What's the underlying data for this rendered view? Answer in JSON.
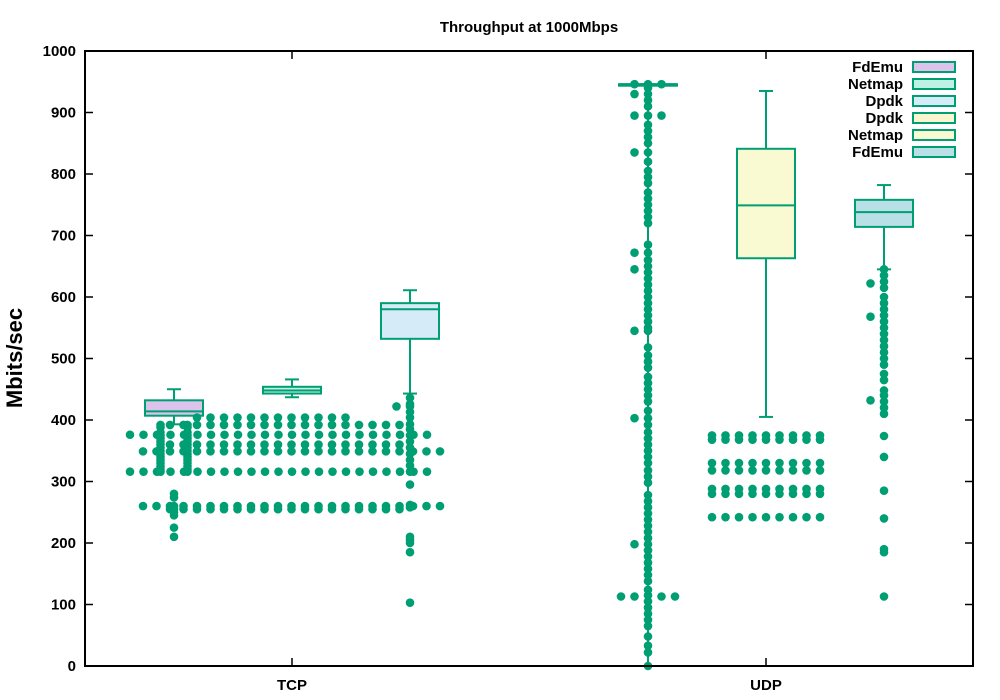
{
  "chart_data": {
    "type": "box",
    "title": "Throughput at 1000Mbps",
    "ylabel": "Mbits/sec",
    "xlabel": "",
    "ylim": [
      0,
      1000
    ],
    "yticks": [
      0,
      100,
      200,
      300,
      400,
      500,
      600,
      700,
      800,
      900,
      1000
    ],
    "categories": [
      "TCP",
      "UDP"
    ],
    "colors": {
      "stroke": "#009e73",
      "dot": "#009e73",
      "fill_fdemu_tcp": "#dcc3ec",
      "fill_netmap_tcp": "#bdf1e3",
      "fill_dpdk_tcp": "#d5ecf8",
      "fill_dpdk_udp": "#f9f5cf",
      "fill_netmap_udp": "#fafad2",
      "fill_fdemu_udp": "#b9e0e6"
    },
    "legend": [
      {
        "label": "FdEmu",
        "fill": "#dcc3ec"
      },
      {
        "label": "Netmap",
        "fill": "#bdf1e3"
      },
      {
        "label": "Dpdk",
        "fill": "#d5ecf8"
      },
      {
        "label": "Dpdk",
        "fill": "#f9f5cf"
      },
      {
        "label": "Netmap",
        "fill": "#fafad2"
      },
      {
        "label": "FdEmu",
        "fill": "#b9e0e6"
      }
    ],
    "series": [
      {
        "category": "TCP",
        "slot": 0,
        "fill": "#dcc3ec",
        "whisker_low": 393,
        "q1": 407,
        "median": 414,
        "q3": 432,
        "whisker_high": 450,
        "outlier_groups": [
          {
            "y": [
              392,
              388,
              380,
              375,
              370,
              365,
              360,
              355,
              350,
              345,
              340,
              335,
              330,
              325,
              320,
              316
            ],
            "spread": [
              -1,
              1
            ]
          },
          {
            "y": [
              280,
              274,
              260,
              255,
              250,
              245,
              225,
              210
            ],
            "spread": [
              0
            ]
          }
        ]
      },
      {
        "category": "TCP",
        "slot": 1,
        "fill": "#bdf1e3",
        "whisker_low": 437,
        "q1": 443,
        "median": 448,
        "q3": 454,
        "whisker_high": 466,
        "outlier_groups": []
      },
      {
        "category": "TCP",
        "slot": 2,
        "fill": "#d5ecf8",
        "whisker_low": 443,
        "q1": 532,
        "median": 580,
        "q3": 590,
        "whisker_high": 611,
        "outlier_groups": [
          {
            "y": [
              436,
              426,
              422,
              413,
              404,
              393,
              385,
              375,
              365,
              355,
              345,
              335,
              326,
              316,
              295,
              262,
              258,
              210,
              205,
              200,
              185,
              103
            ],
            "spread": [
              0
            ]
          },
          {
            "y": [
              422
            ],
            "spread": [
              -1
            ]
          }
        ]
      },
      {
        "category": "UDP",
        "slot": 0,
        "fill": "#f9f5cf",
        "whisker_low": 0,
        "q1": 946,
        "median": 946,
        "q3": 946,
        "whisker_high": 946,
        "outlier_groups": [
          {
            "y": [
              946,
              940,
              930,
              920,
              910,
              895,
              880,
              870,
              860,
              850,
              835,
              820,
              805,
              795,
              785,
              770,
              760,
              750,
              740,
              730,
              720,
              685,
              672,
              660,
              650,
              640,
              630,
              620,
              610,
              600,
              590,
              580,
              570,
              560,
              550,
              545,
              518,
              505,
              495,
              485,
              470,
              460,
              450,
              440,
              430,
              415,
              403,
              392,
              380,
              370,
              360,
              350,
              340,
              330,
              318,
              308,
              298,
              278,
              268,
              258,
              248,
              238,
              228,
              218,
              208,
              198,
              188,
              178,
              168,
              158,
              148,
              138,
              124,
              115,
              105,
              95,
              85,
              75,
              65,
              48,
              33,
              22,
              0
            ],
            "spread": [
              0
            ]
          },
          {
            "y": [
              946,
              930,
              895,
              835,
              672,
              645,
              545,
              403,
              198,
              113
            ],
            "spread": [
              -1
            ]
          },
          {
            "y": [
              946,
              895,
              113
            ],
            "spread": [
              1
            ]
          },
          {
            "y": [
              113
            ],
            "spread": [
              -2,
              2
            ]
          }
        ]
      },
      {
        "category": "UDP",
        "slot": 1,
        "fill": "#fafad2",
        "whisker_low": 405,
        "q1": 663,
        "median": 749,
        "q3": 841,
        "whisker_high": 935,
        "outlier_groups": [
          {
            "y": [
              375,
              368,
              330,
              318,
              288,
              280,
              242
            ],
            "spread": [
              -4,
              -3,
              -2,
              -1,
              0,
              1,
              2,
              3,
              4
            ]
          }
        ]
      },
      {
        "category": "UDP",
        "slot": 2,
        "fill": "#b9e0e6",
        "whisker_low": 645,
        "q1": 714,
        "median": 738,
        "q3": 758,
        "whisker_high": 782,
        "outlier_groups": [
          {
            "y": [
              645,
              635,
              625,
              615,
              600,
              590,
              580,
              570,
              560,
              550,
              540,
              530,
              520,
              510,
              500,
              490,
              475,
              465,
              448,
              440,
              430,
              420,
              410,
              374,
              340,
              285,
              240,
              190,
              185,
              113
            ],
            "spread": [
              0
            ]
          },
          {
            "y": [
              622,
              568,
              432
            ],
            "spread": [
              -1
            ]
          }
        ]
      }
    ]
  }
}
